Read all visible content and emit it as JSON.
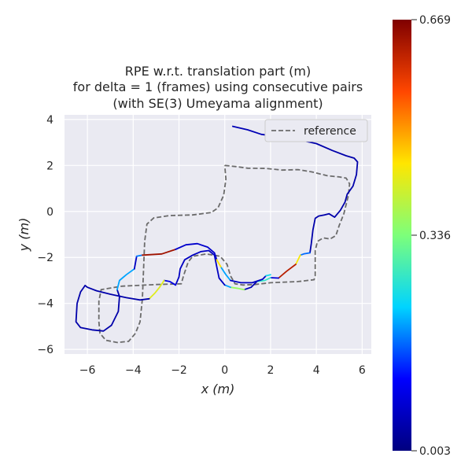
{
  "chart_data": {
    "type": "line",
    "title_lines": [
      "RPE w.r.t. translation part (m)",
      "for delta = 1 (frames) using consecutive pairs",
      "(with SE(3) Umeyama alignment)"
    ],
    "xlabel": "x (m)",
    "ylabel": "y (m)",
    "xlim": [
      -7.0,
      6.4
    ],
    "ylim": [
      -6.2,
      4.2
    ],
    "xticks": [
      -6,
      -4,
      -2,
      0,
      2,
      4,
      6
    ],
    "xtick_labels": [
      "−6",
      "−4",
      "−2",
      "0",
      "2",
      "4",
      "6"
    ],
    "yticks": [
      -6,
      -4,
      -2,
      0,
      2,
      4
    ],
    "ytick_labels": [
      "−6",
      "−4",
      "−2",
      "0",
      "2",
      "4"
    ],
    "grid": true,
    "legend": {
      "position": "top-right",
      "entries": [
        "reference"
      ]
    },
    "reference": {
      "name": "reference",
      "color": "#6b6b6b",
      "points": [
        [
          0.0,
          2.0
        ],
        [
          0.5,
          1.95
        ],
        [
          1.0,
          1.88
        ],
        [
          1.8,
          1.87
        ],
        [
          2.5,
          1.8
        ],
        [
          3.2,
          1.82
        ],
        [
          3.8,
          1.72
        ],
        [
          4.5,
          1.55
        ],
        [
          5.0,
          1.5
        ],
        [
          5.3,
          1.45
        ],
        [
          5.45,
          1.2
        ],
        [
          5.4,
          0.7
        ],
        [
          5.3,
          0.3
        ],
        [
          5.2,
          -0.1
        ],
        [
          5.0,
          -0.6
        ],
        [
          4.85,
          -1.05
        ],
        [
          4.6,
          -1.2
        ],
        [
          4.3,
          -1.15
        ],
        [
          4.05,
          -1.3
        ],
        [
          3.95,
          -1.7
        ],
        [
          3.95,
          -2.8
        ],
        [
          3.9,
          -2.97
        ],
        [
          3.2,
          -3.05
        ],
        [
          2.0,
          -3.1
        ],
        [
          1.3,
          -3.18
        ],
        [
          0.8,
          -3.2
        ],
        [
          0.45,
          -3.15
        ],
        [
          0.25,
          -2.8
        ],
        [
          0.1,
          -2.3
        ],
        [
          -0.2,
          -1.95
        ],
        [
          -0.8,
          -1.85
        ],
        [
          -1.4,
          -1.95
        ],
        [
          -1.6,
          -2.2
        ],
        [
          -1.8,
          -2.8
        ],
        [
          -1.9,
          -3.15
        ],
        [
          -3.0,
          -3.18
        ],
        [
          -4.5,
          -3.25
        ],
        [
          -5.4,
          -3.4
        ],
        [
          -5.5,
          -3.9
        ],
        [
          -5.5,
          -4.8
        ],
        [
          -5.45,
          -5.3
        ],
        [
          -5.2,
          -5.6
        ],
        [
          -4.7,
          -5.7
        ],
        [
          -4.2,
          -5.65
        ],
        [
          -3.9,
          -5.3
        ],
        [
          -3.7,
          -4.8
        ],
        [
          -3.6,
          -3.8
        ],
        [
          -3.55,
          -2.6
        ],
        [
          -3.5,
          -1.3
        ],
        [
          -3.4,
          -0.55
        ],
        [
          -3.1,
          -0.28
        ],
        [
          -2.4,
          -0.18
        ],
        [
          -1.4,
          -0.15
        ],
        [
          -0.6,
          -0.05
        ],
        [
          -0.3,
          0.15
        ],
        [
          -0.05,
          0.7
        ],
        [
          0.05,
          1.4
        ],
        [
          0.0,
          2.0
        ]
      ]
    },
    "colorbar": {
      "min": 0.003,
      "max": 0.669,
      "ticks": [
        0.003,
        0.336,
        0.669
      ],
      "tick_labels": [
        "0.003",
        "0.336",
        "0.669"
      ],
      "colormap": [
        "#00007f",
        "#0000ff",
        "#00d4ff",
        "#7dff7a",
        "#ffe600",
        "#ff4700",
        "#7f0000"
      ]
    },
    "series": [
      {
        "value": 0.05,
        "points": [
          [
            0.35,
            3.7
          ],
          [
            1.0,
            3.55
          ],
          [
            1.6,
            3.35
          ],
          [
            2.0,
            3.3
          ],
          [
            2.5,
            3.25
          ]
        ]
      },
      {
        "value": 0.13,
        "points": [
          [
            2.5,
            3.25
          ],
          [
            3.1,
            3.1
          ],
          [
            3.4,
            3.08
          ]
        ]
      },
      {
        "value": 0.04,
        "points": [
          [
            3.4,
            3.08
          ],
          [
            4.0,
            2.95
          ],
          [
            4.7,
            2.65
          ],
          [
            5.3,
            2.42
          ],
          [
            5.65,
            2.32
          ],
          [
            5.8,
            2.15
          ],
          [
            5.75,
            1.6
          ],
          [
            5.6,
            1.1
          ],
          [
            5.35,
            0.75
          ],
          [
            5.25,
            0.4
          ],
          [
            5.05,
            0.05
          ],
          [
            4.8,
            -0.25
          ],
          [
            4.55,
            -0.1
          ],
          [
            4.35,
            -0.15
          ],
          [
            4.1,
            -0.2
          ],
          [
            3.95,
            -0.3
          ],
          [
            3.85,
            -0.8
          ],
          [
            3.78,
            -1.4
          ],
          [
            3.72,
            -1.8
          ]
        ]
      },
      {
        "value": 0.17,
        "points": [
          [
            3.72,
            -1.8
          ],
          [
            3.45,
            -1.85
          ],
          [
            3.3,
            -1.9
          ]
        ]
      },
      {
        "value": 0.44,
        "points": [
          [
            3.3,
            -1.9
          ],
          [
            3.1,
            -2.3
          ]
        ]
      },
      {
        "value": 0.62,
        "points": [
          [
            3.1,
            -2.3
          ],
          [
            2.7,
            -2.6
          ],
          [
            2.35,
            -2.9
          ]
        ]
      },
      {
        "value": 0.08,
        "points": [
          [
            2.35,
            -2.9
          ],
          [
            2.0,
            -2.88
          ]
        ]
      },
      {
        "value": 0.27,
        "points": [
          [
            2.0,
            -2.88
          ],
          [
            1.75,
            -3.0
          ],
          [
            1.4,
            -3.05
          ]
        ]
      },
      {
        "value": 0.05,
        "points": [
          [
            1.4,
            -3.05
          ],
          [
            1.15,
            -3.3
          ],
          [
            0.85,
            -3.4
          ]
        ]
      },
      {
        "value": 0.36,
        "points": [
          [
            0.85,
            -3.4
          ],
          [
            0.6,
            -3.35
          ],
          [
            0.25,
            -3.3
          ]
        ]
      },
      {
        "value": 0.2,
        "points": [
          [
            0.25,
            -3.3
          ],
          [
            0.0,
            -3.2
          ]
        ]
      },
      {
        "value": 0.06,
        "points": [
          [
            0.0,
            -3.2
          ],
          [
            -0.25,
            -2.9
          ],
          [
            -0.35,
            -2.4
          ],
          [
            -0.45,
            -1.9
          ],
          [
            -0.7,
            -1.7
          ],
          [
            -1.05,
            -1.75
          ],
          [
            -1.4,
            -1.9
          ],
          [
            -1.75,
            -2.1
          ],
          [
            -1.95,
            -2.5
          ],
          [
            -2.0,
            -2.85
          ],
          [
            -2.15,
            -3.2
          ]
        ]
      },
      {
        "value": 0.09,
        "points": [
          [
            -2.15,
            -3.2
          ],
          [
            -2.4,
            -3.05
          ],
          [
            -2.65,
            -3.0
          ]
        ]
      },
      {
        "value": 0.42,
        "points": [
          [
            -2.65,
            -3.0
          ],
          [
            -2.85,
            -3.3
          ],
          [
            -3.05,
            -3.55
          ],
          [
            -3.3,
            -3.8
          ]
        ]
      },
      {
        "value": 0.04,
        "points": [
          [
            -3.3,
            -3.8
          ],
          [
            -3.7,
            -3.85
          ],
          [
            -4.3,
            -3.75
          ],
          [
            -5.0,
            -3.6
          ],
          [
            -5.6,
            -3.45
          ],
          [
            -6.0,
            -3.3
          ],
          [
            -6.1,
            -3.22
          ]
        ]
      },
      {
        "value": 0.04,
        "points": [
          [
            -6.1,
            -3.22
          ],
          [
            -6.3,
            -3.5
          ],
          [
            -6.45,
            -4.0
          ],
          [
            -6.5,
            -4.8
          ],
          [
            -6.3,
            -5.05
          ],
          [
            -5.8,
            -5.15
          ],
          [
            -5.3,
            -5.2
          ],
          [
            -4.95,
            -4.95
          ],
          [
            -4.65,
            -4.35
          ],
          [
            -4.6,
            -3.7
          ],
          [
            -4.7,
            -3.4
          ]
        ]
      },
      {
        "value": 0.2,
        "points": [
          [
            -4.7,
            -3.4
          ],
          [
            -4.6,
            -3.0
          ],
          [
            -4.3,
            -2.75
          ],
          [
            -3.95,
            -2.5
          ]
        ]
      },
      {
        "value": 0.06,
        "points": [
          [
            -3.95,
            -2.5
          ],
          [
            -3.85,
            -1.95
          ]
        ]
      },
      {
        "value": 0.18,
        "points": [
          [
            -3.85,
            -1.95
          ],
          [
            -3.6,
            -1.9
          ]
        ]
      },
      {
        "value": 0.64,
        "points": [
          [
            -3.6,
            -1.9
          ],
          [
            -2.75,
            -1.85
          ],
          [
            -2.15,
            -1.65
          ]
        ]
      },
      {
        "value": 0.07,
        "points": [
          [
            -2.15,
            -1.65
          ],
          [
            -1.7,
            -1.45
          ],
          [
            -1.2,
            -1.4
          ],
          [
            -0.75,
            -1.55
          ],
          [
            -0.45,
            -1.8
          ],
          [
            -0.35,
            -2.1
          ]
        ]
      },
      {
        "value": 0.45,
        "points": [
          [
            -0.35,
            -2.1
          ],
          [
            -0.15,
            -2.45
          ]
        ]
      },
      {
        "value": 0.2,
        "points": [
          [
            -0.15,
            -2.45
          ],
          [
            0.05,
            -2.75
          ],
          [
            0.25,
            -3.0
          ]
        ]
      },
      {
        "value": 0.06,
        "points": [
          [
            0.25,
            -3.0
          ],
          [
            0.7,
            -3.1
          ],
          [
            1.2,
            -3.1
          ],
          [
            1.65,
            -2.95
          ],
          [
            1.8,
            -2.8
          ]
        ]
      },
      {
        "value": 0.24,
        "points": [
          [
            1.8,
            -2.8
          ],
          [
            2.0,
            -2.75
          ]
        ]
      }
    ]
  }
}
